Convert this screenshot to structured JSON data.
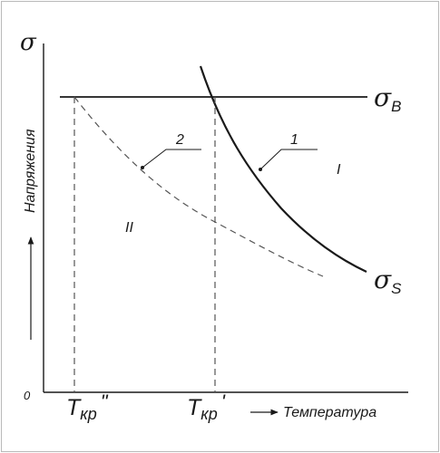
{
  "diagram": {
    "y_axis": {
      "symbol": "σ",
      "label": "Напряжения"
    },
    "x_axis": {
      "origin": "0",
      "label": "Температура"
    },
    "lines": {
      "sigma_b": {
        "symbol": "σ",
        "subscript": "B"
      },
      "sigma_s": {
        "symbol": "σ",
        "subscript": "S"
      }
    },
    "callouts": {
      "curve_1": "1",
      "curve_2": "2"
    },
    "regions": {
      "region_1": "I",
      "region_2": "II"
    },
    "temperatures": {
      "t_double": {
        "base": "T",
        "sub": "кр",
        "mark": "\""
      },
      "t_single": {
        "base": "T",
        "sub": "кр",
        "mark": "'"
      }
    }
  }
}
